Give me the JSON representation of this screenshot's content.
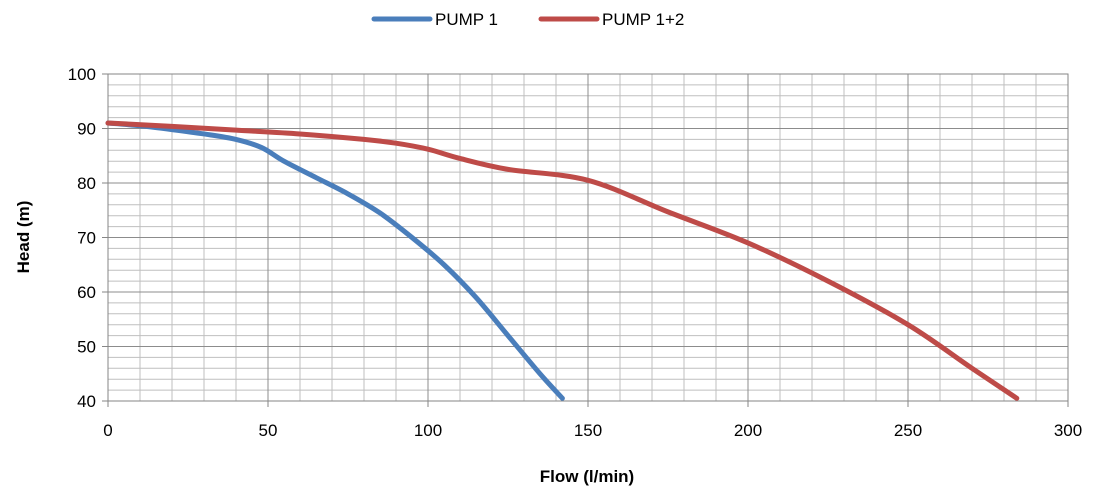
{
  "chart_data": {
    "type": "line",
    "xlabel": "Flow (l/min)",
    "ylabel": "Head (m)",
    "xlim": [
      0,
      300
    ],
    "ylim": [
      40,
      100
    ],
    "x_ticks": [
      "0",
      "50",
      "100",
      "150",
      "200",
      "250",
      "300"
    ],
    "y_ticks": [
      "40",
      "50",
      "60",
      "70",
      "80",
      "90",
      "100"
    ],
    "grid": "on",
    "legend_position": "top",
    "series": [
      {
        "name": "PUMP 1",
        "color": "#4a7ebb",
        "x": [
          0,
          10,
          20,
          30,
          40,
          48,
          55,
          65,
          75,
          85,
          95,
          105,
          115,
          125,
          135,
          142
        ],
        "y": [
          91,
          90.5,
          89.8,
          89,
          88,
          86.5,
          84,
          81,
          78,
          74.5,
          70,
          65,
          59,
          52,
          45,
          40.5
        ]
      },
      {
        "name": "PUMP 1+2",
        "color": "#be4b48",
        "x": [
          0,
          20,
          40,
          60,
          80,
          90,
          100,
          110,
          125,
          150,
          175,
          200,
          225,
          250,
          270,
          284
        ],
        "y": [
          91,
          90.4,
          89.7,
          89,
          88,
          87.3,
          86.2,
          84.5,
          82.5,
          80.5,
          74.7,
          69,
          62,
          54,
          46,
          40.5
        ]
      }
    ]
  }
}
